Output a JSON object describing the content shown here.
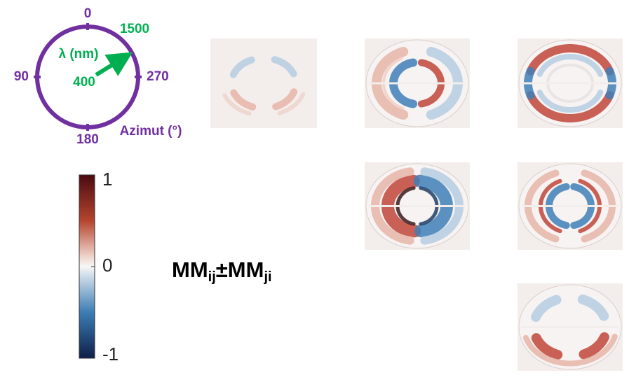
{
  "key": {
    "azimuth_labels": [
      0,
      90,
      180,
      270
    ],
    "azimuth_title": "Azimut (°)",
    "wavelength_title": "λ (nm)",
    "wavelength_start": 400,
    "wavelength_end": 1500
  },
  "colorbar": {
    "lim": [
      -1,
      1
    ],
    "ticks": [
      1,
      0,
      -1
    ]
  },
  "label": {
    "main": "MM",
    "sub1": "ij",
    "mid": "±MM",
    "sub2": "ji"
  }
}
